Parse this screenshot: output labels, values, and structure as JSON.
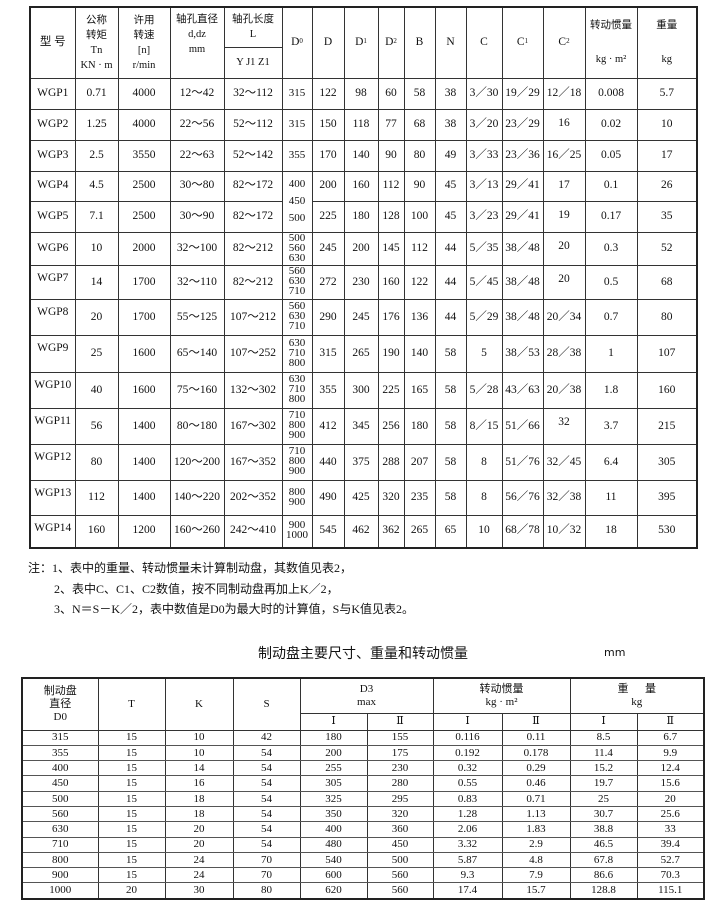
{
  "table1": {
    "headers": {
      "model": "型  号",
      "torque": [
        "公称",
        "转矩",
        "Tn",
        "KN · m"
      ],
      "speed": [
        "许用",
        "转速",
        "[n]",
        "r/min"
      ],
      "bore_dia": [
        "轴孔直径",
        "d,dz",
        "mm"
      ],
      "bore_len": [
        "轴孔长度",
        "L"
      ],
      "bore_len_sub": "Y  J1 Z1",
      "D0": {
        "main": "D",
        "sup": "0"
      },
      "D": "D",
      "D1": {
        "main": "D",
        "sup": "1"
      },
      "D2": {
        "main": "D",
        "sup": "2"
      },
      "B": "B",
      "N": "N",
      "C": "C",
      "C1": {
        "main": "C",
        "sup": "1"
      },
      "C2": {
        "main": "C",
        "sup": "2"
      },
      "inertia": [
        "转动惯量",
        "kg · m²"
      ],
      "weight": [
        "重量",
        "kg"
      ]
    },
    "rows": [
      {
        "model": "WGP1",
        "tn": "0.71",
        "n": "4000",
        "d": "12～42",
        "L": "32～112",
        "D0": [
          "315"
        ],
        "D": "122",
        "D1": "98",
        "D2": "60",
        "B": "58",
        "N": "38",
        "C": "3／30",
        "C1": "19／29",
        "C2": "12／18",
        "I": "0.008",
        "m": "5.7"
      },
      {
        "model": "WGP2",
        "tn": "1.25",
        "n": "4000",
        "d": "22～56",
        "L": "52～112",
        "D0": [
          "315"
        ],
        "D": "150",
        "D1": "118",
        "D2": "77",
        "B": "68",
        "N": "38",
        "C": "3／20",
        "C1": "23／29",
        "C2": "16",
        "I": "0.02",
        "m": "10"
      },
      {
        "model": "WGP3",
        "tn": "2.5",
        "n": "3550",
        "d": "22～63",
        "L": "52～142",
        "D0": [
          "355"
        ],
        "D": "170",
        "D1": "140",
        "D2": "90",
        "B": "80",
        "N": "49",
        "C": "3／33",
        "C1": "23／36",
        "C2": "16／25",
        "I": "0.05",
        "m": "17"
      },
      {
        "model": "WGP4",
        "tn": "4.5",
        "n": "2500",
        "d": "30～80",
        "L": "82～172",
        "D0": [
          "400",
          "450",
          "500"
        ],
        "D": "200",
        "D1": "160",
        "D2": "112",
        "B": "90",
        "N": "45",
        "C": "3／13",
        "C1": "29／41",
        "C2": "17",
        "I": "0.1",
        "m": "26"
      },
      {
        "model": "WGP5",
        "tn": "7.1",
        "n": "2500",
        "d": "30～90",
        "L": "82～172",
        "D0": null,
        "D": "225",
        "D1": "180",
        "D2": "128",
        "B": "100",
        "N": "45",
        "C": "3／23",
        "C1": "29／41",
        "C2": "19",
        "I": "0.17",
        "m": "35"
      },
      {
        "model": "WGP6",
        "tn": "10",
        "n": "2000",
        "d": "32～100",
        "L": "82～212",
        "D0": [
          "500",
          "560",
          "630"
        ],
        "D": "245",
        "D1": "200",
        "D2": "145",
        "B": "112",
        "N": "44",
        "C": "5／35",
        "C1": "38／48",
        "C2": "20",
        "I": "0.3",
        "m": "52"
      },
      {
        "model": "WGP7",
        "tn": "14",
        "n": "1700",
        "d": "32～110",
        "L": "82～212",
        "D0": [
          "560",
          "630",
          "710"
        ],
        "D": "272",
        "D1": "230",
        "D2": "160",
        "B": "122",
        "N": "44",
        "C": "5／45",
        "C1": "38／48",
        "C2": "20",
        "I": "0.5",
        "m": "68"
      },
      {
        "model": "WGP8",
        "tn": "20",
        "n": "1700",
        "d": "55～125",
        "L": "107～212",
        "D0": [
          "560",
          "630",
          "710"
        ],
        "D": "290",
        "D1": "245",
        "D2": "176",
        "B": "136",
        "N": "44",
        "C": "5／29",
        "C1": "38／48",
        "C2": "20／34",
        "I": "0.7",
        "m": "80"
      },
      {
        "model": "WGP9",
        "tn": "25",
        "n": "1600",
        "d": "65～140",
        "L": "107～252",
        "D0": [
          "630",
          "710",
          "800"
        ],
        "D": "315",
        "D1": "265",
        "D2": "190",
        "B": "140",
        "N": "58",
        "C": "5",
        "C1": "38／53",
        "C2": "28／38",
        "I": "1",
        "m": "107"
      },
      {
        "model": "WGP10",
        "tn": "40",
        "n": "1600",
        "d": "75～160",
        "L": "132～302",
        "D0": [
          "630",
          "710",
          "800"
        ],
        "D": "355",
        "D1": "300",
        "D2": "225",
        "B": "165",
        "N": "58",
        "C": "5／28",
        "C1": "43／63",
        "C2": "20／38",
        "I": "1.8",
        "m": "160"
      },
      {
        "model": "WGP11",
        "tn": "56",
        "n": "1400",
        "d": "80～180",
        "L": "167～302",
        "D0": [
          "710",
          "800",
          "900"
        ],
        "D": "412",
        "D1": "345",
        "D2": "256",
        "B": "180",
        "N": "58",
        "C": "8／15",
        "C1": "51／66",
        "C2": "32",
        "I": "3.7",
        "m": "215"
      },
      {
        "model": "WGP12",
        "tn": "80",
        "n": "1400",
        "d": "120～200",
        "L": "167～352",
        "D0": [
          "710",
          "800",
          "900"
        ],
        "D": "440",
        "D1": "375",
        "D2": "288",
        "B": "207",
        "N": "58",
        "C": "8",
        "C1": "51／76",
        "C2": "32／45",
        "I": "6.4",
        "m": "305"
      },
      {
        "model": "WGP13",
        "tn": "112",
        "n": "1400",
        "d": "140～220",
        "L": "202～352",
        "D0": [
          "800",
          "900"
        ],
        "D": "490",
        "D1": "425",
        "D2": "320",
        "B": "235",
        "N": "58",
        "C": "8",
        "C1": "56／76",
        "C2": "32／38",
        "I": "11",
        "m": "395"
      },
      {
        "model": "WGP14",
        "tn": "160",
        "n": "1200",
        "d": "160～260",
        "L": "242～410",
        "D0": [
          "900",
          "1000"
        ],
        "D": "545",
        "D1": "462",
        "D2": "362",
        "B": "265",
        "N": "65",
        "C": "10",
        "C1": "68／78",
        "C2": "10／32",
        "I": "18",
        "m": "530"
      }
    ]
  },
  "notes": [
    "注：1、表中的重量、转动惯量未计算制动盘，其数值见表2，",
    "2、表中C、C1、C2数值，按不同制动盘再加上K／2，",
    "3、N＝S－K／2，表中数值是D0为最大时的计算值，S与K值见表2。"
  ],
  "table2": {
    "title": "制动盘主要尺寸、重量和转动惯量",
    "unit": "mm",
    "headers": {
      "dia": [
        "制动盘",
        "直径",
        "D0"
      ],
      "T": "T",
      "K": "K",
      "S": "S",
      "D3": [
        "D3",
        "max"
      ],
      "inertia": [
        "转动惯量",
        "kg · m²"
      ],
      "weight": [
        "重      量",
        "kg"
      ],
      "sub": [
        "Ⅰ",
        "Ⅱ",
        "Ⅰ",
        "Ⅱ",
        "Ⅰ",
        "Ⅱ"
      ]
    },
    "rows": [
      [
        "315",
        "15",
        "10",
        "42",
        "180",
        "155",
        "0.116",
        "0.11",
        "8.5",
        "6.7"
      ],
      [
        "355",
        "15",
        "10",
        "54",
        "200",
        "175",
        "0.192",
        "0.178",
        "11.4",
        "9.9"
      ],
      [
        "400",
        "15",
        "14",
        "54",
        "255",
        "230",
        "0.32",
        "0.29",
        "15.2",
        "12.4"
      ],
      [
        "450",
        "15",
        "16",
        "54",
        "305",
        "280",
        "0.55",
        "0.46",
        "19.7",
        "15.6"
      ],
      [
        "500",
        "15",
        "18",
        "54",
        "325",
        "295",
        "0.83",
        "0.71",
        "25",
        "20"
      ],
      [
        "560",
        "15",
        "18",
        "54",
        "350",
        "320",
        "1.28",
        "1.13",
        "30.7",
        "25.6"
      ],
      [
        "630",
        "15",
        "20",
        "54",
        "400",
        "360",
        "2.06",
        "1.83",
        "38.8",
        "33"
      ],
      [
        "710",
        "15",
        "20",
        "54",
        "480",
        "450",
        "3.32",
        "2.9",
        "46.5",
        "39.4"
      ],
      [
        "800",
        "15",
        "24",
        "70",
        "540",
        "500",
        "5.87",
        "4.8",
        "67.8",
        "52.7"
      ],
      [
        "900",
        "15",
        "24",
        "70",
        "600",
        "560",
        "9.3",
        "7.9",
        "86.6",
        "70.3"
      ],
      [
        "1000",
        "20",
        "30",
        "80",
        "620",
        "560",
        "17.4",
        "15.7",
        "128.8",
        "115.1"
      ]
    ]
  }
}
